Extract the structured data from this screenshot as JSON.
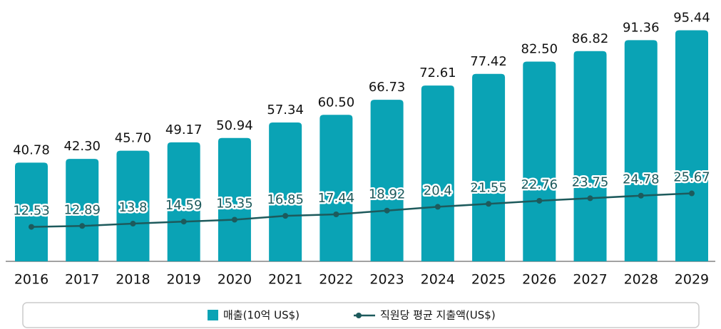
{
  "chart_data": {
    "type": "bar",
    "categories": [
      "2016",
      "2017",
      "2018",
      "2019",
      "2020",
      "2021",
      "2022",
      "2023",
      "2024",
      "2025",
      "2026",
      "2027",
      "2028",
      "2029"
    ],
    "series": [
      {
        "name": "매출(10억 US$)",
        "color": "#0aa3b5",
        "type": "bar",
        "values": [
          40.78,
          42.3,
          45.7,
          49.17,
          50.94,
          57.34,
          60.5,
          66.73,
          72.61,
          77.42,
          82.5,
          86.82,
          91.36,
          95.44
        ],
        "value_labels": [
          "40.78",
          "42.30",
          "45.70",
          "49.17",
          "50.94",
          "57.34",
          "60.50",
          "66.73",
          "72.61",
          "77.42",
          "82.50",
          "86.82",
          "91.36",
          "95.44"
        ]
      },
      {
        "name": "직원당 평균 지출액(US$)",
        "color": "#1d5a5c",
        "type": "line",
        "axis": "y2",
        "values": [
          12.53,
          12.89,
          13.8,
          14.59,
          15.35,
          16.85,
          17.44,
          18.92,
          20.4,
          21.55,
          22.76,
          23.75,
          24.78,
          25.67
        ]
      }
    ],
    "ylim": [
      0,
      100
    ],
    "y2lim": [
      -1,
      94
    ],
    "legend": "bottom"
  }
}
